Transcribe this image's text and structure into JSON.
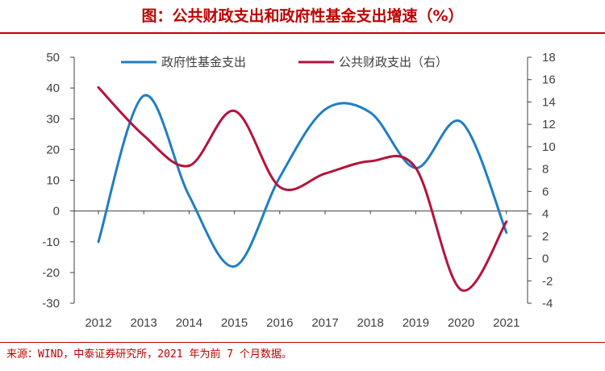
{
  "title": "图：公共财政支出和政府性基金支出增速（%）",
  "source": "来源：WIND，中泰证券研究所，2021 年为前 7 个月数据。",
  "colors": {
    "title": "#c00000",
    "gov_fund": "#1f7ec4",
    "public_finance": "#b5123b",
    "axis": "#404040"
  },
  "chart_data": {
    "type": "line",
    "x": [
      "2012",
      "2013",
      "2014",
      "2015",
      "2016",
      "2017",
      "2018",
      "2019",
      "2020",
      "2021"
    ],
    "series": [
      {
        "name": "政府性基金支出",
        "axis": "left",
        "values": [
          -10,
          37.5,
          5,
          -18,
          11,
          33,
          32,
          14,
          29,
          -7
        ]
      },
      {
        "name": "公共财政支出（右）",
        "axis": "right",
        "values": [
          15.3,
          11,
          8.3,
          13.2,
          6.4,
          7.6,
          8.7,
          8.1,
          -2.8,
          3.3
        ]
      }
    ],
    "ylim_left": [
      -30,
      50
    ],
    "yticks_left": [
      "50",
      "40",
      "30",
      "20",
      "10",
      "0",
      "-10",
      "-20",
      "-30"
    ],
    "ylim_right": [
      -4,
      18
    ],
    "yticks_right": [
      "18",
      "16",
      "14",
      "12",
      "10",
      "8",
      "6",
      "4",
      "2",
      "0",
      "-2",
      "-4"
    ],
    "legend_position": "top",
    "grid": false
  }
}
